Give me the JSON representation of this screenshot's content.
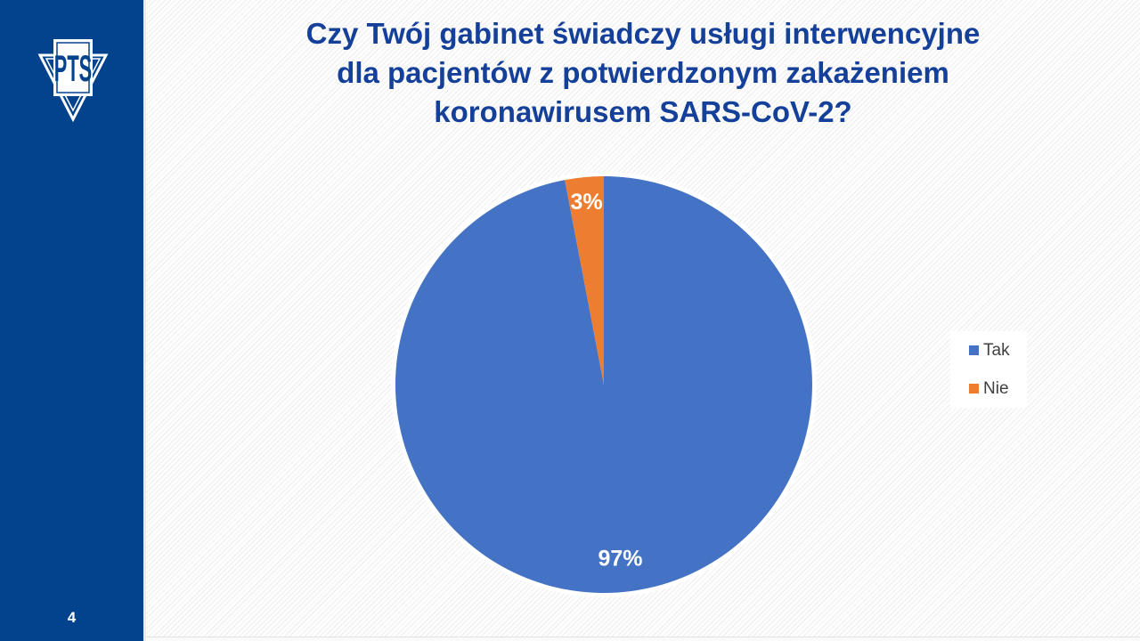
{
  "slide": {
    "logo_text": "PTS",
    "page_number": "4"
  },
  "title_lines": [
    "Czy Twój gabinet świadczy usługi interwencyjne",
    "dla pacjentów z potwierdzonym zakażeniem",
    "koronawirusem SARS-CoV-2?"
  ],
  "chart_data": {
    "type": "pie",
    "title": "Czy Twój gabinet świadczy usługi interwencyjne dla pacjentów z potwierdzonym zakażeniem koronawirusem SARS-CoV-2?",
    "labels": [
      "Tak",
      "Nie"
    ],
    "values": [
      97,
      3
    ],
    "data_labels": [
      "97%",
      "3%"
    ],
    "colors": [
      "#4472C4",
      "#ED7D31"
    ],
    "start_angle": 0,
    "direction": "clockwise",
    "legend": {
      "position": "right",
      "entries": [
        "Tak",
        "Nie"
      ]
    }
  },
  "colors": {
    "sidebar_blue": "#03438d",
    "title_blue": "#15409a",
    "series_tak": "#4472C4",
    "series_nie": "#ED7D31",
    "legend_text": "#404040",
    "data_label_text": "#ffffff",
    "slide_background": "#ffffff"
  }
}
